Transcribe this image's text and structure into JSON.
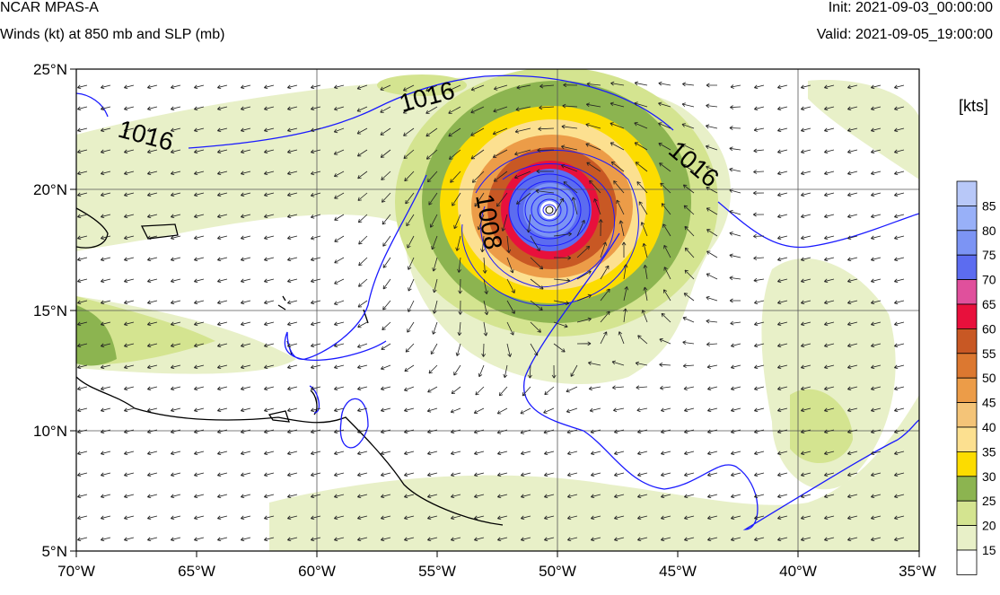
{
  "header": {
    "title": "NCAR MPAS-A",
    "subtitle": "Winds (kt) at 850 mb and SLP (mb)",
    "init": "Init: 2021-09-03_00:00:00",
    "valid": "Valid: 2021-09-05_19:00:00"
  },
  "map": {
    "lon_range": [
      -70,
      -35
    ],
    "lat_range": [
      5,
      25
    ],
    "lon_ticks": [
      "70°W",
      "65°W",
      "60°W",
      "55°W",
      "50°W",
      "45°W",
      "40°W",
      "35°W"
    ],
    "lat_ticks": [
      "25°N",
      "20°N",
      "15°N",
      "10°N",
      "5°N"
    ],
    "grid": true,
    "storm_center": {
      "lon": -50.5,
      "lat": 19.2
    },
    "isobar_labels": [
      "1016",
      "1016",
      "1016",
      "1008"
    ],
    "isobar_color": "#1a1aff",
    "coast_color": "#000000"
  },
  "colorbar": {
    "title": "[kts]",
    "levels": [
      "85",
      "80",
      "75",
      "70",
      "65",
      "60",
      "55",
      "50",
      "45",
      "40",
      "35",
      "30",
      "25",
      "20",
      "15"
    ],
    "colors": [
      "#b8c8f8",
      "#98b0f8",
      "#7c94f4",
      "#5c6cf0",
      "#e0509c",
      "#e8103c",
      "#c85824",
      "#dc7830",
      "#ec9c48",
      "#f4c478",
      "#fce090",
      "#fcdc00",
      "#8cb450",
      "#d4e490",
      "#e8f0c8",
      "#ffffff"
    ]
  }
}
